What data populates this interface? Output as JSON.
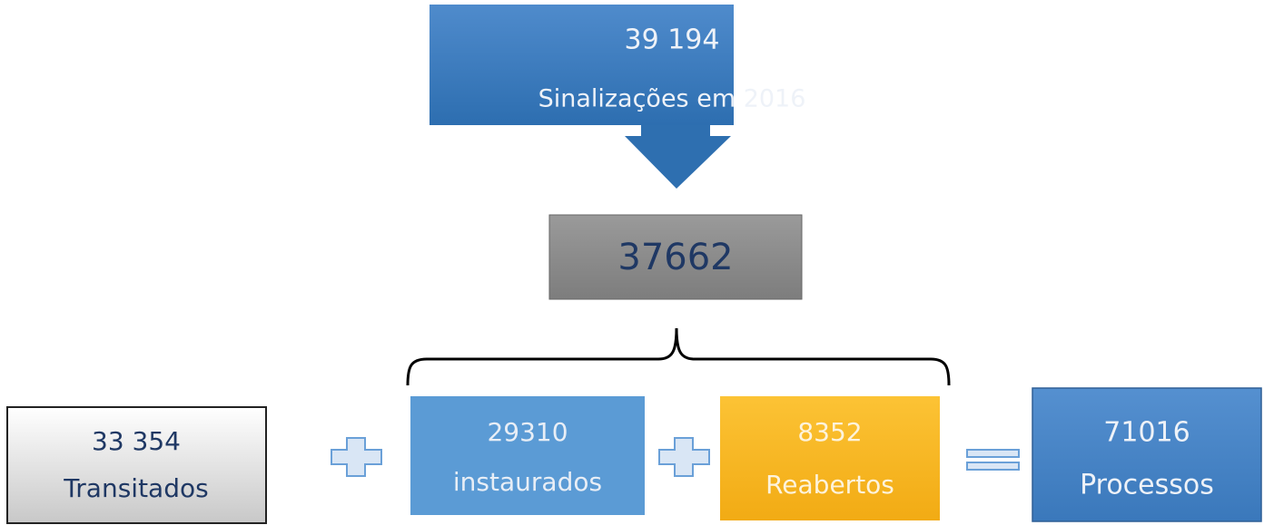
{
  "top": {
    "number": "39 194",
    "label": "Sinalizações em 2016"
  },
  "middle": {
    "number": "37662"
  },
  "boxes": [
    {
      "number": "33 354",
      "label": "Transitados"
    },
    {
      "number": "29310",
      "label": "instaurados"
    },
    {
      "number": "8352",
      "label": "Reabertos"
    },
    {
      "number": "71016",
      "label": "Processos"
    }
  ]
}
